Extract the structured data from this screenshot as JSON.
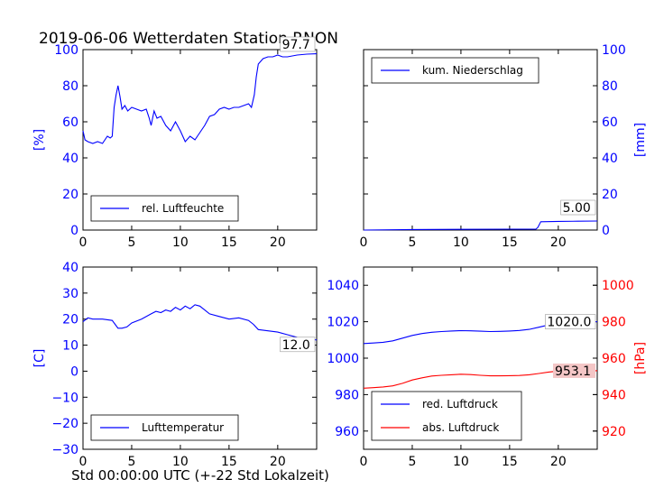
{
  "title": "2019-06-06 Wetterdaten Station RNON",
  "footer_xlabel": "Std 00:00:00 UTC (+-22 Std Lokalzeit)",
  "colors": {
    "primary": "#0000ff",
    "secondary": "#ff0000",
    "annotation_bg_red": "#f4c6c6"
  },
  "chart_data": [
    {
      "type": "line",
      "id": "humidity",
      "ylabel": "[%]",
      "ylabel_side": "left",
      "xlim": [
        0,
        24
      ],
      "ylim": [
        0,
        100
      ],
      "xticks": [
        "0",
        "5",
        "10",
        "15",
        "20"
      ],
      "yticks": [
        "0",
        "20",
        "40",
        "60",
        "80",
        "100"
      ],
      "legend_position": "lower-left",
      "annotation": "97.7",
      "series": [
        {
          "name": "rel. Luftfeuchte",
          "color": "#0000ff",
          "x": [
            0,
            0.2,
            0.5,
            1,
            1.5,
            2,
            2.5,
            2.8,
            3,
            3.2,
            3.4,
            3.6,
            3.8,
            4,
            4.3,
            4.6,
            5,
            5.5,
            6,
            6.5,
            6.8,
            7,
            7.3,
            7.6,
            8,
            8.5,
            9,
            9.5,
            10,
            10.5,
            11,
            11.5,
            12,
            12.5,
            13,
            13.5,
            14,
            14.5,
            15,
            15.5,
            16,
            16.5,
            17,
            17.3,
            17.6,
            17.8,
            18,
            18.5,
            19,
            19.5,
            20,
            20.5,
            21,
            22,
            23,
            24
          ],
          "y": [
            55,
            50,
            49,
            48,
            49,
            48,
            52,
            51,
            52,
            68,
            75,
            80,
            74,
            67,
            69,
            66,
            68,
            67,
            66,
            67,
            62,
            58,
            66,
            62,
            63,
            58,
            55,
            60,
            55,
            49,
            52,
            50,
            54,
            58,
            63,
            64,
            67,
            68,
            67,
            68,
            68,
            69,
            70,
            68,
            75,
            85,
            92,
            95,
            96,
            96,
            97,
            96,
            96,
            97,
            97.5,
            97.7
          ]
        }
      ]
    },
    {
      "type": "line",
      "id": "precipitation",
      "ylabel": "[mm]",
      "ylabel_side": "right",
      "xlim": [
        0,
        24
      ],
      "ylim": [
        0,
        100
      ],
      "xticks": [
        "0",
        "5",
        "10",
        "15",
        "20"
      ],
      "yticks": [
        "0",
        "20",
        "40",
        "60",
        "80",
        "100"
      ],
      "legend_position": "upper-left",
      "annotation": "5.00",
      "series": [
        {
          "name": "kum. Niederschlag",
          "color": "#0000ff",
          "x": [
            0,
            5,
            10,
            15,
            17.7,
            17.9,
            18.2,
            20,
            22,
            24
          ],
          "y": [
            0,
            0.3,
            0.4,
            0.5,
            0.5,
            1.5,
            4.6,
            4.8,
            4.9,
            5.0
          ]
        }
      ]
    },
    {
      "type": "line",
      "id": "temperature",
      "ylabel": "[C]",
      "ylabel_side": "left",
      "xlim": [
        0,
        24
      ],
      "ylim": [
        -30,
        40
      ],
      "xticks": [
        "0",
        "5",
        "10",
        "15",
        "20"
      ],
      "yticks": [
        "−30",
        "−20",
        "−10",
        "0",
        "10",
        "20",
        "30",
        "40"
      ],
      "legend_position": "lower-left",
      "annotation": "12.0",
      "series": [
        {
          "name": "Lufttemperatur",
          "color": "#0000ff",
          "x": [
            0,
            0.5,
            1,
            2,
            3,
            3.3,
            3.6,
            4,
            4.5,
            5,
            6,
            7,
            7.5,
            8,
            8.5,
            9,
            9.5,
            10,
            10.5,
            11,
            11.5,
            12,
            12.5,
            13,
            14,
            15,
            16,
            17,
            17.5,
            18,
            19,
            20,
            21,
            22,
            23,
            24
          ],
          "y": [
            19,
            20.5,
            20,
            20,
            19.5,
            18,
            16.5,
            16.5,
            17,
            18.5,
            20,
            22,
            23,
            22.5,
            23.5,
            23,
            24.5,
            23.5,
            25,
            24,
            25.5,
            25,
            23.5,
            22,
            21,
            20,
            20.5,
            19.5,
            18,
            16,
            15.5,
            15,
            14,
            13,
            12.5,
            12
          ]
        }
      ]
    },
    {
      "type": "line",
      "id": "pressure",
      "ylabel": "[hPa]",
      "ylabel_side": "right",
      "xlim": [
        0,
        24
      ],
      "ylim": [
        950,
        1050
      ],
      "ylim_right": [
        910,
        1010
      ],
      "xticks": [
        "0",
        "5",
        "10",
        "15",
        "20"
      ],
      "yticks": [
        "960",
        "980",
        "1000",
        "1020",
        "1040"
      ],
      "yticks_right": [
        "920",
        "940",
        "960",
        "980",
        "1000"
      ],
      "legend_position": "lower-left",
      "annotation": "1020.0",
      "annotation_secondary": "953.1",
      "series": [
        {
          "name": "red. Luftdruck",
          "color": "#0000ff",
          "axis": "left",
          "x": [
            0,
            1,
            2,
            3,
            4,
            5,
            6,
            7,
            8,
            9,
            10,
            11,
            12,
            13,
            14,
            15,
            16,
            17,
            18,
            19,
            20,
            21,
            22,
            23,
            24
          ],
          "y": [
            1008,
            1008.3,
            1008.7,
            1009.5,
            1011,
            1012.5,
            1013.5,
            1014.2,
            1014.6,
            1014.9,
            1015.1,
            1015.0,
            1014.8,
            1014.6,
            1014.7,
            1014.9,
            1015.2,
            1015.8,
            1017,
            1018.2,
            1019.2,
            1019.7,
            1019.9,
            1020.0,
            1020.0
          ]
        },
        {
          "name": "abs. Luftdruck",
          "color": "#ff0000",
          "axis": "right",
          "x": [
            0,
            1,
            2,
            3,
            4,
            5,
            6,
            7,
            8,
            9,
            10,
            11,
            12,
            13,
            14,
            15,
            16,
            17,
            18,
            19,
            20,
            21,
            22,
            23,
            24
          ],
          "y": [
            943.5,
            943.8,
            944.2,
            944.8,
            946.2,
            948,
            949.2,
            950.2,
            950.6,
            950.9,
            951.2,
            951.0,
            950.6,
            950.3,
            950.3,
            950.4,
            950.5,
            950.9,
            951.6,
            952.4,
            952.9,
            953.1,
            953.1,
            953.1,
            953.1
          ]
        }
      ]
    }
  ]
}
